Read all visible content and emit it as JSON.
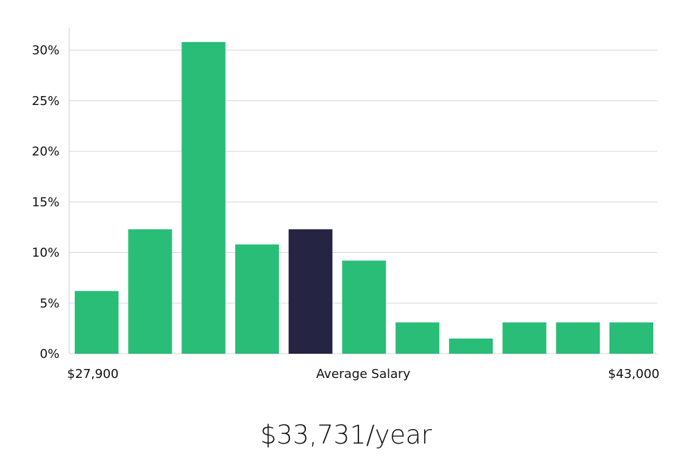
{
  "chart_data": {
    "type": "bar",
    "ylim": [
      0,
      32
    ],
    "y_ticks": [
      0,
      5,
      10,
      15,
      20,
      25,
      30
    ],
    "y_tick_labels": [
      "0%",
      "5%",
      "10%",
      "15%",
      "20%",
      "25%",
      "30%"
    ],
    "values": [
      6.2,
      12.3,
      30.8,
      10.8,
      12.3,
      9.2,
      3.1,
      1.5,
      3.1,
      3.1,
      3.1
    ],
    "highlight_index": 4,
    "x_labels": {
      "min": "$27,900",
      "center": "Average Salary",
      "max": "$43,000"
    },
    "grid": true,
    "colors": {
      "bar": "#2abd78",
      "highlight": "#262443",
      "grid": "#d6d6d6",
      "axis": "#cccccc"
    }
  },
  "salary_text": "$33,731/year"
}
